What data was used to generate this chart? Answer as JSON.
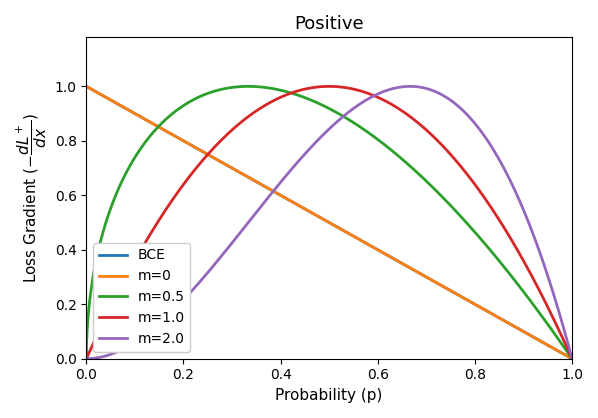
{
  "title": "Positive",
  "xlabel": "Probability (p)",
  "ylabel": "Loss Gradient ($-\\frac{dL^+}{dx}$)",
  "xlim": [
    0,
    1
  ],
  "ylim": [
    0,
    1.18
  ],
  "curves": [
    {
      "label": "BCE",
      "color": "#1f77b4",
      "m": null
    },
    {
      "label": "m=0",
      "color": "#ff7f0e",
      "m": 0.0
    },
    {
      "label": "m=0.5",
      "color": "#2ca02c",
      "m": 0.5
    },
    {
      "label": "m=1.0",
      "color": "#d62728",
      "m": 1.0
    },
    {
      "label": "m=2.0",
      "color": "#9467bd",
      "m": 2.0
    }
  ],
  "legend_loc": "lower left",
  "figsize": [
    5.98,
    4.18
  ],
  "dpi": 100
}
